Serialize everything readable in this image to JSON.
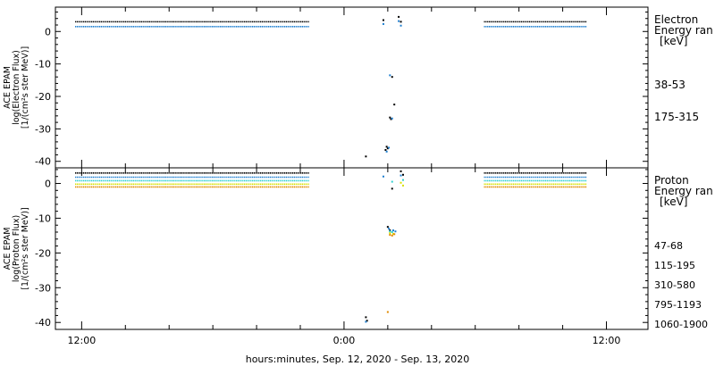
{
  "x_axis": {
    "title": "hours:minutes, Sep. 12, 2020 - Sep. 13, 2020",
    "range_hours": [
      10.8,
      37.9
    ],
    "major_ticks": [
      {
        "h": 12,
        "label": "12:00"
      },
      {
        "h": 24,
        "label": "0:00"
      },
      {
        "h": 36,
        "label": "12:00"
      }
    ]
  },
  "chart_data": [
    {
      "type": "scatter",
      "panel": "electron",
      "ylabel_lines": [
        "ACE EPAM",
        "log(Electron Flux)",
        "[1/(cm²s ster MeV)]"
      ],
      "ylim": [
        -42,
        7.5
      ],
      "yticks": [
        0,
        -10,
        -20,
        -30,
        -40
      ],
      "legend_title_lines": [
        "Electron",
        "Energy ran",
        "[keV]"
      ],
      "series": [
        {
          "name": "38-53",
          "color": "#000000",
          "segments": [
            {
              "x0": 11.7,
              "x1": 22.4,
              "y": 3.0
            },
            {
              "x0": 30.4,
              "x1": 35.1,
              "y": 3.0
            }
          ],
          "points": [
            [
              25.8,
              3.5
            ],
            [
              26.5,
              4.5
            ],
            [
              26.6,
              3.0
            ],
            [
              26.2,
              -14
            ],
            [
              26.3,
              -22.5
            ],
            [
              26.1,
              -26.5
            ],
            [
              26.15,
              -27
            ],
            [
              25.95,
              -35.5
            ],
            [
              26.0,
              -36
            ],
            [
              25.9,
              -36.5
            ],
            [
              25.0,
              -38.5
            ]
          ]
        },
        {
          "name": "175-315",
          "color": "#1e7fd0",
          "segments": [
            {
              "x0": 11.7,
              "x1": 22.4,
              "y": 1.5
            },
            {
              "x0": 30.4,
              "x1": 35.1,
              "y": 1.5
            }
          ],
          "points": [
            [
              25.8,
              2.3
            ],
            [
              26.5,
              3.2
            ],
            [
              26.6,
              1.8
            ],
            [
              26.1,
              -13.5
            ],
            [
              26.2,
              -26.8
            ],
            [
              26.05,
              -35.8
            ],
            [
              25.95,
              -37
            ]
          ]
        }
      ]
    },
    {
      "type": "scatter",
      "panel": "proton",
      "ylabel_lines": [
        "ACE EPAM",
        "log(Proton Flux)",
        "[1/(cm²s ster MeV)]"
      ],
      "ylim": [
        -42,
        4.5
      ],
      "yticks": [
        0,
        -10,
        -20,
        -30,
        -40
      ],
      "legend_title_lines": [
        "Proton",
        "Energy ran",
        "[keV]"
      ],
      "series": [
        {
          "name": "47-68",
          "color": "#000000",
          "segments": [
            {
              "x0": 11.7,
              "x1": 22.4,
              "y": 3.0
            },
            {
              "x0": 30.4,
              "x1": 35.1,
              "y": 3.0
            }
          ],
          "points": [
            [
              26.6,
              3.5
            ],
            [
              26.7,
              2.5
            ],
            [
              26.0,
              -12.5
            ],
            [
              26.1,
              -13.5
            ],
            [
              26.2,
              -1.5
            ],
            [
              25.0,
              -38.5
            ],
            [
              25.05,
              -39.5
            ]
          ]
        },
        {
          "name": "115-195",
          "color": "#1e7fd0",
          "segments": [
            {
              "x0": 11.7,
              "x1": 22.4,
              "y": 1.8
            },
            {
              "x0": 30.4,
              "x1": 35.1,
              "y": 1.8
            }
          ],
          "points": [
            [
              25.8,
              2.0
            ],
            [
              26.6,
              2.3
            ],
            [
              26.05,
              -13
            ],
            [
              26.25,
              -13.5
            ],
            [
              26.35,
              -13.8
            ],
            [
              25.0,
              -39.8
            ]
          ]
        },
        {
          "name": "310-580",
          "color": "#2fd0d0",
          "segments": [
            {
              "x0": 11.7,
              "x1": 22.4,
              "y": 0.8
            },
            {
              "x0": 30.4,
              "x1": 35.1,
              "y": 0.8
            }
          ],
          "points": [
            [
              26.2,
              0.5
            ],
            [
              26.7,
              1.0
            ],
            [
              26.1,
              -13.8
            ],
            [
              26.2,
              -14
            ]
          ]
        },
        {
          "name": "795-1193",
          "color": "#d8e000",
          "segments": [
            {
              "x0": 11.7,
              "x1": 22.4,
              "y": -0.2
            },
            {
              "x0": 30.4,
              "x1": 35.1,
              "y": -0.2
            }
          ],
          "points": [
            [
              26.6,
              0.2
            ],
            [
              26.7,
              -0.6
            ],
            [
              26.1,
              -14.3
            ],
            [
              26.25,
              -14.5
            ]
          ]
        },
        {
          "name": "1060-1900",
          "color": "#e08a00",
          "segments": [
            {
              "x0": 11.7,
              "x1": 22.4,
              "y": -1.0
            },
            {
              "x0": 30.4,
              "x1": 35.1,
              "y": -1.0
            }
          ],
          "points": [
            [
              26.1,
              -14.8
            ],
            [
              26.2,
              -15
            ],
            [
              26.3,
              -14.6
            ],
            [
              26.0,
              -37
            ]
          ]
        }
      ]
    }
  ]
}
